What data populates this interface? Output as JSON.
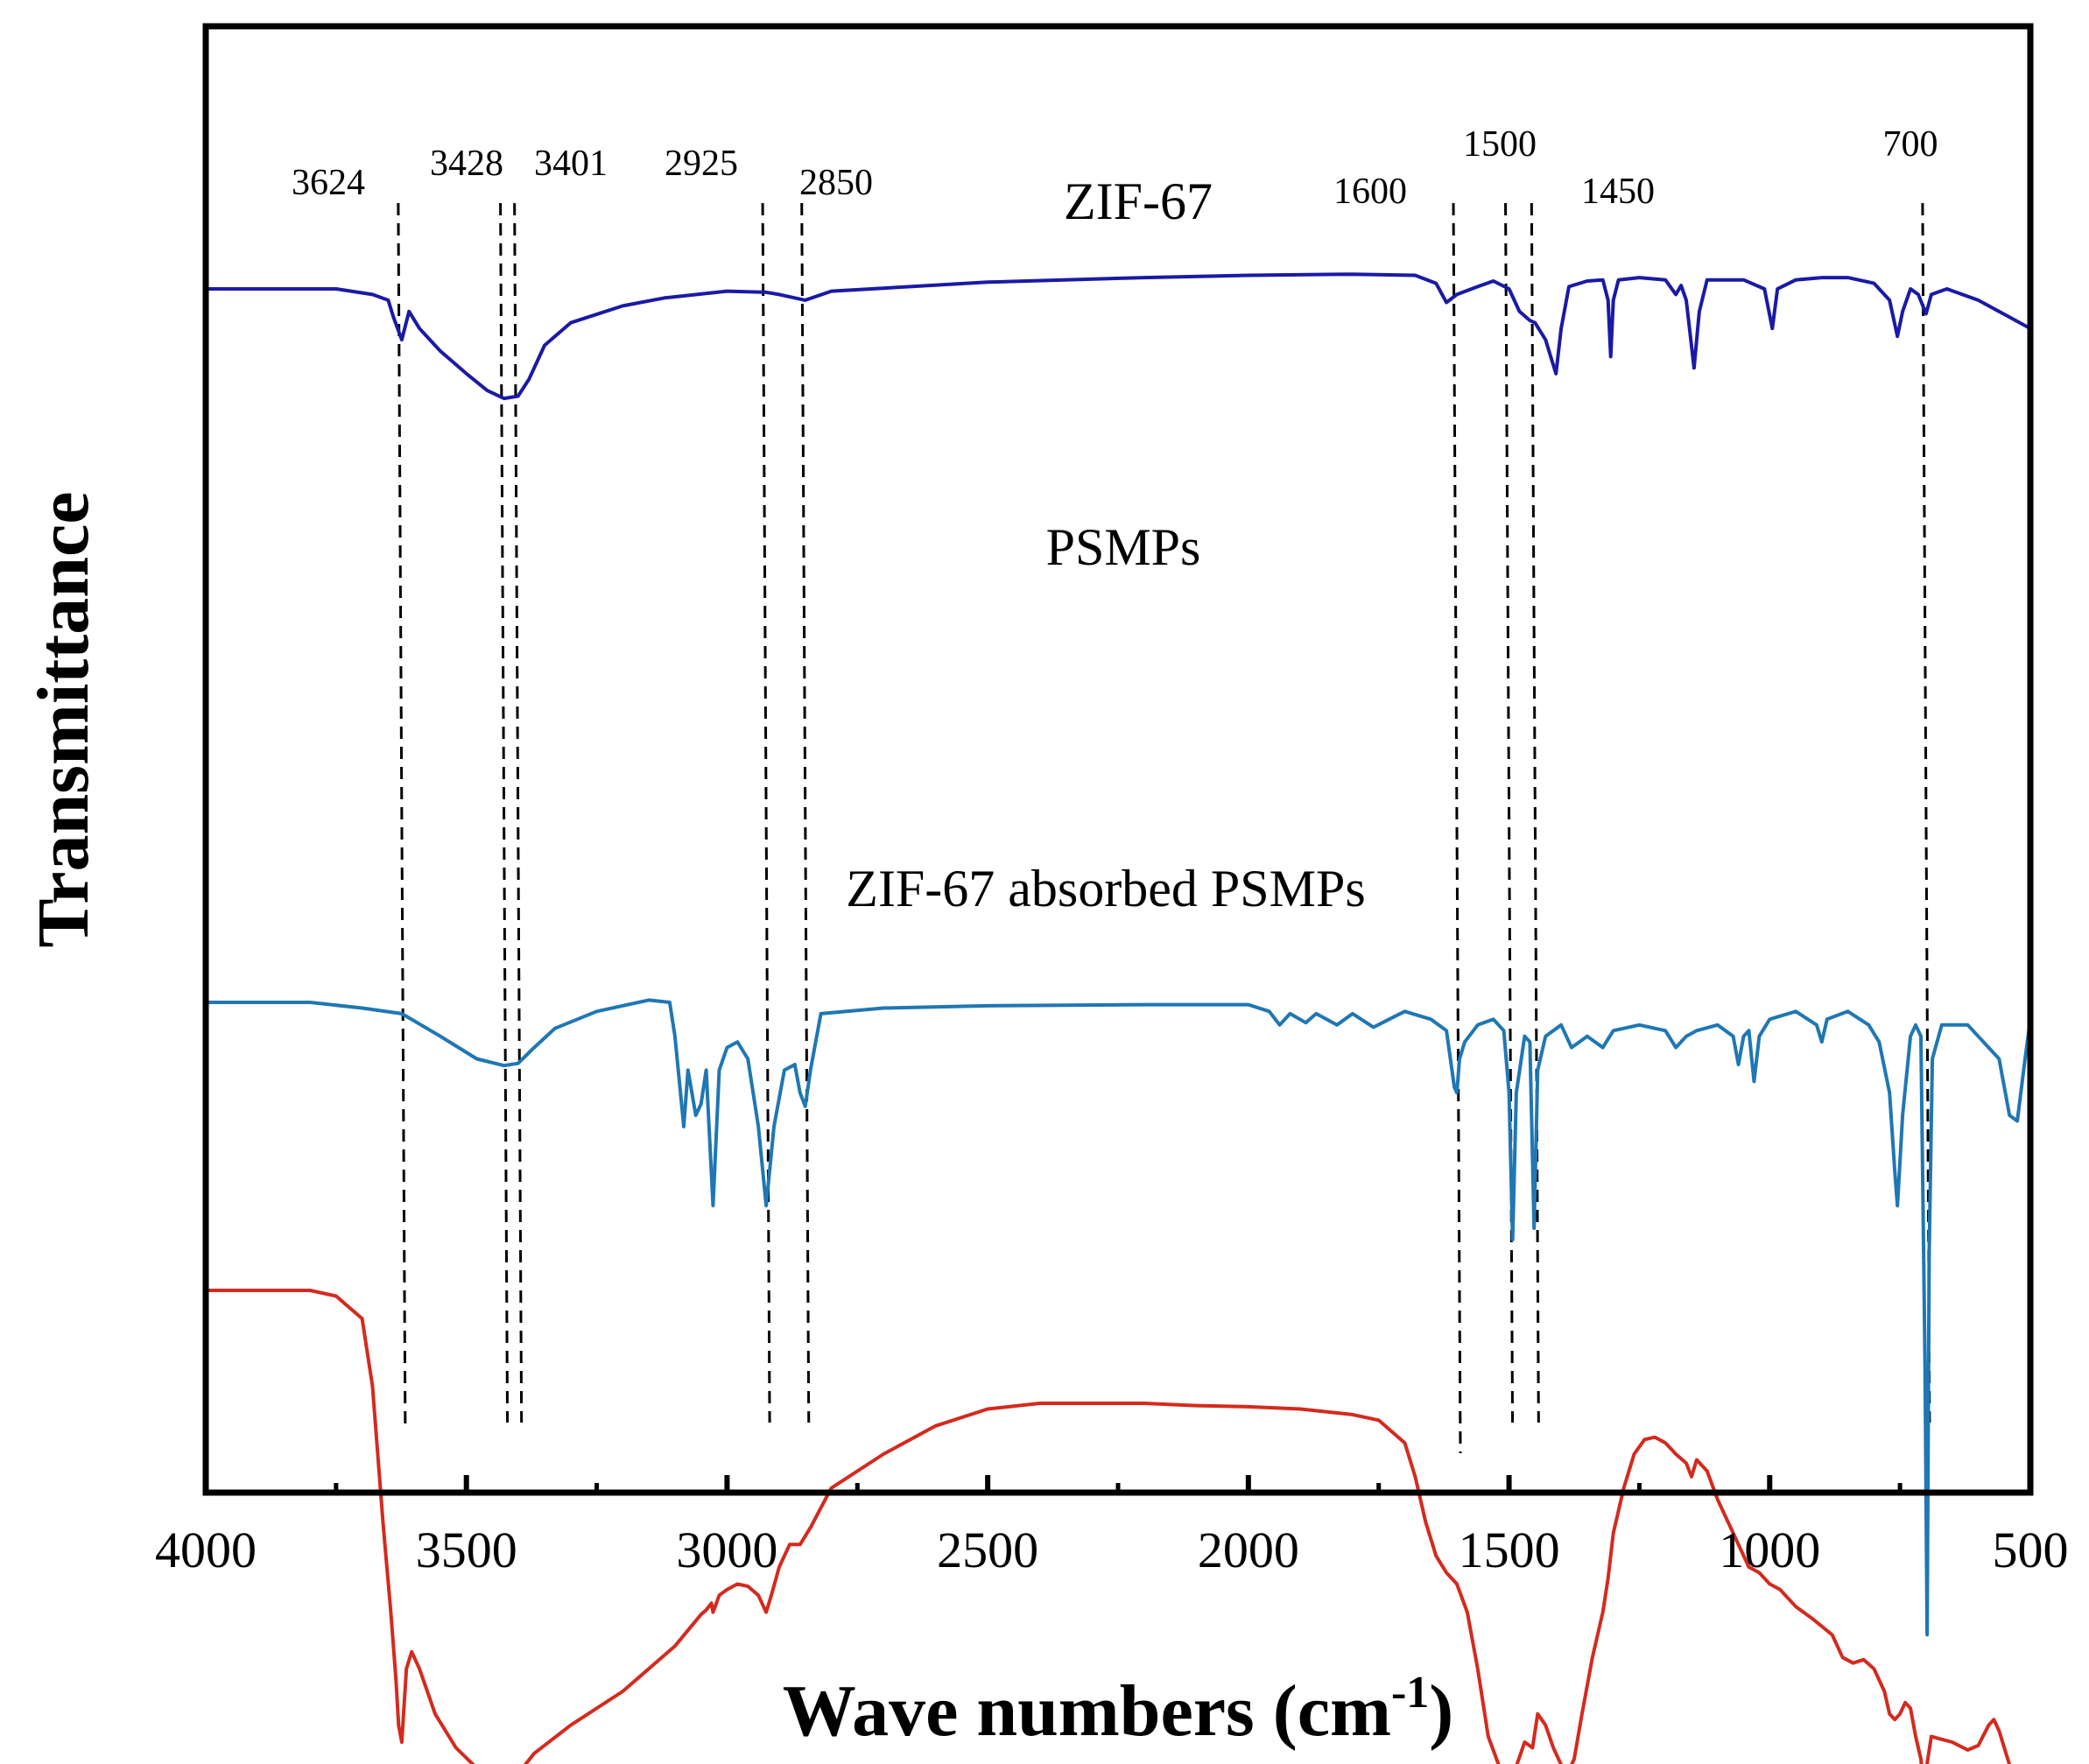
{
  "chart_data": {
    "type": "line",
    "xlabel": "Wave numbers (cm",
    "xlabel_sup": "-1",
    "xlabel_close": ")",
    "ylabel": "Transmittance",
    "xlim": [
      4000,
      500
    ],
    "x_reversed": true,
    "x_ticks": [
      "4000",
      "3500",
      "3000",
      "2500",
      "2000",
      "1500",
      "1000",
      "500"
    ],
    "y_ticks_visible": false,
    "grid": false,
    "legend": "none",
    "peak_markers": [
      {
        "label": "3624",
        "x": 3624
      },
      {
        "label": "3428",
        "x": 3428
      },
      {
        "label": "3401",
        "x": 3401
      },
      {
        "label": "2925",
        "x": 2925
      },
      {
        "label": "2850",
        "x": 2850
      },
      {
        "label": "1600",
        "x": 1600
      },
      {
        "label": "1500",
        "x": 1500
      },
      {
        "label": "1450",
        "x": 1450
      },
      {
        "label": "700",
        "x": 700
      }
    ],
    "series": [
      {
        "name": "ZIF-67",
        "color": "#1a1aa6",
        "points": [
          [
            4000,
            0.89
          ],
          [
            3750,
            0.89
          ],
          [
            3680,
            0.885
          ],
          [
            3650,
            0.88
          ],
          [
            3640,
            0.865
          ],
          [
            3624,
            0.845
          ],
          [
            3610,
            0.87
          ],
          [
            3590,
            0.855
          ],
          [
            3550,
            0.835
          ],
          [
            3500,
            0.815
          ],
          [
            3460,
            0.8
          ],
          [
            3428,
            0.793
          ],
          [
            3401,
            0.795
          ],
          [
            3380,
            0.81
          ],
          [
            3350,
            0.84
          ],
          [
            3300,
            0.86
          ],
          [
            3200,
            0.875
          ],
          [
            3120,
            0.882
          ],
          [
            3000,
            0.888
          ],
          [
            2925,
            0.887
          ],
          [
            2900,
            0.885
          ],
          [
            2850,
            0.88
          ],
          [
            2800,
            0.888
          ],
          [
            2500,
            0.896
          ],
          [
            2200,
            0.9
          ],
          [
            2000,
            0.902
          ],
          [
            1800,
            0.903
          ],
          [
            1680,
            0.902
          ],
          [
            1640,
            0.895
          ],
          [
            1620,
            0.878
          ],
          [
            1600,
            0.885
          ],
          [
            1560,
            0.892
          ],
          [
            1530,
            0.897
          ],
          [
            1500,
            0.89
          ],
          [
            1480,
            0.87
          ],
          [
            1460,
            0.862
          ],
          [
            1450,
            0.86
          ],
          [
            1430,
            0.845
          ],
          [
            1420,
            0.83
          ],
          [
            1410,
            0.815
          ],
          [
            1400,
            0.855
          ],
          [
            1385,
            0.892
          ],
          [
            1350,
            0.897
          ],
          [
            1320,
            0.898
          ],
          [
            1310,
            0.88
          ],
          [
            1305,
            0.83
          ],
          [
            1300,
            0.88
          ],
          [
            1290,
            0.898
          ],
          [
            1250,
            0.9
          ],
          [
            1200,
            0.898
          ],
          [
            1180,
            0.885
          ],
          [
            1170,
            0.893
          ],
          [
            1160,
            0.88
          ],
          [
            1145,
            0.82
          ],
          [
            1135,
            0.87
          ],
          [
            1120,
            0.898
          ],
          [
            1050,
            0.898
          ],
          [
            1010,
            0.89
          ],
          [
            995,
            0.855
          ],
          [
            985,
            0.89
          ],
          [
            950,
            0.898
          ],
          [
            900,
            0.9
          ],
          [
            850,
            0.9
          ],
          [
            800,
            0.895
          ],
          [
            770,
            0.88
          ],
          [
            755,
            0.848
          ],
          [
            745,
            0.87
          ],
          [
            730,
            0.89
          ],
          [
            715,
            0.885
          ],
          [
            700,
            0.868
          ],
          [
            690,
            0.885
          ],
          [
            660,
            0.89
          ],
          [
            600,
            0.88
          ],
          [
            500,
            0.855
          ]
        ]
      },
      {
        "name": "PSMPs",
        "color": "#1f77b4",
        "points": [
          [
            4000,
            0.62
          ],
          [
            3800,
            0.62
          ],
          [
            3700,
            0.615
          ],
          [
            3624,
            0.61
          ],
          [
            3550,
            0.59
          ],
          [
            3480,
            0.57
          ],
          [
            3428,
            0.564
          ],
          [
            3401,
            0.566
          ],
          [
            3370,
            0.58
          ],
          [
            3330,
            0.597
          ],
          [
            3250,
            0.612
          ],
          [
            3150,
            0.622
          ],
          [
            3110,
            0.62
          ],
          [
            3100,
            0.59
          ],
          [
            3083,
            0.51
          ],
          [
            3075,
            0.56
          ],
          [
            3060,
            0.52
          ],
          [
            3050,
            0.53
          ],
          [
            3040,
            0.56
          ],
          [
            3027,
            0.44
          ],
          [
            3015,
            0.56
          ],
          [
            3000,
            0.58
          ],
          [
            2980,
            0.585
          ],
          [
            2960,
            0.57
          ],
          [
            2940,
            0.51
          ],
          [
            2925,
            0.44
          ],
          [
            2910,
            0.51
          ],
          [
            2890,
            0.56
          ],
          [
            2870,
            0.565
          ],
          [
            2860,
            0.54
          ],
          [
            2850,
            0.528
          ],
          [
            2840,
            0.56
          ],
          [
            2820,
            0.61
          ],
          [
            2700,
            0.615
          ],
          [
            2500,
            0.617
          ],
          [
            2200,
            0.618
          ],
          [
            2000,
            0.618
          ],
          [
            1960,
            0.612
          ],
          [
            1940,
            0.6
          ],
          [
            1920,
            0.61
          ],
          [
            1890,
            0.602
          ],
          [
            1870,
            0.61
          ],
          [
            1830,
            0.6
          ],
          [
            1800,
            0.61
          ],
          [
            1760,
            0.598
          ],
          [
            1730,
            0.605
          ],
          [
            1700,
            0.612
          ],
          [
            1650,
            0.605
          ],
          [
            1620,
            0.595
          ],
          [
            1605,
            0.545
          ],
          [
            1600,
            0.54
          ],
          [
            1595,
            0.57
          ],
          [
            1585,
            0.585
          ],
          [
            1560,
            0.6
          ],
          [
            1530,
            0.605
          ],
          [
            1510,
            0.595
          ],
          [
            1500,
            0.54
          ],
          [
            1493,
            0.41
          ],
          [
            1486,
            0.54
          ],
          [
            1470,
            0.59
          ],
          [
            1460,
            0.585
          ],
          [
            1452,
            0.42
          ],
          [
            1445,
            0.56
          ],
          [
            1430,
            0.59
          ],
          [
            1400,
            0.6
          ],
          [
            1380,
            0.58
          ],
          [
            1350,
            0.59
          ],
          [
            1320,
            0.58
          ],
          [
            1300,
            0.595
          ],
          [
            1250,
            0.6
          ],
          [
            1200,
            0.595
          ],
          [
            1180,
            0.58
          ],
          [
            1160,
            0.59
          ],
          [
            1140,
            0.595
          ],
          [
            1100,
            0.6
          ],
          [
            1070,
            0.59
          ],
          [
            1060,
            0.565
          ],
          [
            1050,
            0.59
          ],
          [
            1040,
            0.595
          ],
          [
            1030,
            0.55
          ],
          [
            1020,
            0.59
          ],
          [
            1000,
            0.605
          ],
          [
            950,
            0.612
          ],
          [
            910,
            0.6
          ],
          [
            900,
            0.585
          ],
          [
            890,
            0.605
          ],
          [
            850,
            0.612
          ],
          [
            810,
            0.6
          ],
          [
            790,
            0.585
          ],
          [
            770,
            0.54
          ],
          [
            760,
            0.47
          ],
          [
            755,
            0.44
          ],
          [
            745,
            0.52
          ],
          [
            730,
            0.59
          ],
          [
            720,
            0.6
          ],
          [
            710,
            0.59
          ],
          [
            702,
            0.3
          ],
          [
            698,
            0.06
          ],
          [
            694,
            0.4
          ],
          [
            688,
            0.57
          ],
          [
            670,
            0.6
          ],
          [
            620,
            0.6
          ],
          [
            560,
            0.57
          ],
          [
            540,
            0.52
          ],
          [
            525,
            0.515
          ],
          [
            510,
            0.57
          ],
          [
            500,
            0.605
          ]
        ]
      },
      {
        "name": "ZIF-67 absorbed PSMPs",
        "color": "#d42a1e",
        "points": [
          [
            4000,
            0.385
          ],
          [
            3800,
            0.385
          ],
          [
            3750,
            0.38
          ],
          [
            3700,
            0.36
          ],
          [
            3680,
            0.3
          ],
          [
            3660,
            0.18
          ],
          [
            3645,
            0.1
          ],
          [
            3635,
            0.04
          ],
          [
            3630,
            0.0
          ],
          [
            3624,
            -0.015
          ],
          [
            3615,
            0.05
          ],
          [
            3605,
            0.065
          ],
          [
            3590,
            0.05
          ],
          [
            3560,
            0.01
          ],
          [
            3520,
            -0.02
          ],
          [
            3480,
            -0.038
          ],
          [
            3428,
            -0.045
          ],
          [
            3401,
            -0.043
          ],
          [
            3370,
            -0.025
          ],
          [
            3300,
            0.0
          ],
          [
            3200,
            0.03
          ],
          [
            3100,
            0.07
          ],
          [
            3050,
            0.098
          ],
          [
            3040,
            0.102
          ],
          [
            3030,
            0.108
          ],
          [
            3027,
            0.1
          ],
          [
            3015,
            0.115
          ],
          [
            3000,
            0.12
          ],
          [
            2980,
            0.125
          ],
          [
            2960,
            0.123
          ],
          [
            2940,
            0.115
          ],
          [
            2925,
            0.1
          ],
          [
            2915,
            0.115
          ],
          [
            2900,
            0.14
          ],
          [
            2880,
            0.16
          ],
          [
            2860,
            0.16
          ],
          [
            2840,
            0.175
          ],
          [
            2800,
            0.21
          ],
          [
            2700,
            0.24
          ],
          [
            2600,
            0.265
          ],
          [
            2500,
            0.28
          ],
          [
            2400,
            0.285
          ],
          [
            2300,
            0.285
          ],
          [
            2200,
            0.285
          ],
          [
            2100,
            0.283
          ],
          [
            2000,
            0.282
          ],
          [
            1900,
            0.28
          ],
          [
            1800,
            0.275
          ],
          [
            1750,
            0.27
          ],
          [
            1700,
            0.25
          ],
          [
            1680,
            0.22
          ],
          [
            1660,
            0.18
          ],
          [
            1640,
            0.15
          ],
          [
            1620,
            0.135
          ],
          [
            1600,
            0.125
          ],
          [
            1580,
            0.1
          ],
          [
            1560,
            0.05
          ],
          [
            1540,
            -0.01
          ],
          [
            1520,
            -0.035
          ],
          [
            1505,
            -0.04
          ],
          [
            1493,
            -0.055
          ],
          [
            1485,
            -0.035
          ],
          [
            1470,
            -0.015
          ],
          [
            1455,
            -0.02
          ],
          [
            1445,
            0.01
          ],
          [
            1430,
            0.0
          ],
          [
            1415,
            -0.02
          ],
          [
            1400,
            -0.035
          ],
          [
            1385,
            -0.04
          ],
          [
            1375,
            -0.03
          ],
          [
            1360,
            0.01
          ],
          [
            1340,
            0.06
          ],
          [
            1320,
            0.1
          ],
          [
            1310,
            0.13
          ],
          [
            1300,
            0.17
          ],
          [
            1280,
            0.21
          ],
          [
            1260,
            0.24
          ],
          [
            1240,
            0.253
          ],
          [
            1220,
            0.255
          ],
          [
            1200,
            0.25
          ],
          [
            1180,
            0.24
          ],
          [
            1160,
            0.232
          ],
          [
            1150,
            0.22
          ],
          [
            1140,
            0.235
          ],
          [
            1120,
            0.225
          ],
          [
            1100,
            0.2
          ],
          [
            1080,
            0.18
          ],
          [
            1060,
            0.16
          ],
          [
            1040,
            0.14
          ],
          [
            1020,
            0.135
          ],
          [
            1000,
            0.125
          ],
          [
            980,
            0.12
          ],
          [
            950,
            0.105
          ],
          [
            920,
            0.095
          ],
          [
            880,
            0.08
          ],
          [
            860,
            0.06
          ],
          [
            840,
            0.055
          ],
          [
            820,
            0.058
          ],
          [
            800,
            0.05
          ],
          [
            780,
            0.03
          ],
          [
            770,
            0.01
          ],
          [
            760,
            0.005
          ],
          [
            750,
            0.01
          ],
          [
            740,
            0.02
          ],
          [
            730,
            0.015
          ],
          [
            720,
            -0.01
          ],
          [
            710,
            -0.03
          ],
          [
            704,
            -0.06
          ],
          [
            700,
            -0.04
          ],
          [
            690,
            -0.01
          ],
          [
            675,
            -0.012
          ],
          [
            650,
            -0.015
          ],
          [
            620,
            -0.022
          ],
          [
            600,
            -0.018
          ],
          [
            580,
            0.0
          ],
          [
            570,
            0.005
          ],
          [
            560,
            -0.005
          ],
          [
            540,
            -0.035
          ],
          [
            520,
            -0.055
          ],
          [
            500,
            -0.06
          ]
        ]
      }
    ],
    "series_labels": [
      "ZIF-67",
      "PSMPs",
      "ZIF-67 absorbed PSMPs"
    ]
  }
}
